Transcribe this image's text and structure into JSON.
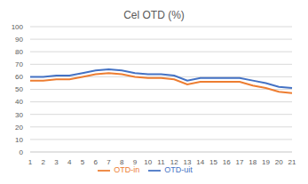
{
  "chart_data": {
    "type": "line",
    "title": "Cel OTD (%)",
    "categories": [
      "1",
      "2",
      "3",
      "4",
      "5",
      "6",
      "7",
      "8",
      "9",
      "10",
      "11",
      "12",
      "13",
      "14",
      "15",
      "16",
      "17",
      "18",
      "19",
      "20",
      "21"
    ],
    "series": [
      {
        "name": "OTD-uit",
        "color": "#4472c4",
        "values": [
          60,
          60,
          61,
          61,
          63,
          65,
          66,
          65,
          63,
          62,
          62,
          61,
          57,
          59,
          59,
          59,
          59,
          57,
          55,
          52,
          51
        ]
      },
      {
        "name": "OTD-in",
        "color": "#ed7d31",
        "values": [
          57,
          57,
          58,
          58,
          60,
          62,
          63,
          62,
          60,
          59,
          59,
          58,
          54,
          56,
          56,
          56,
          56,
          53,
          51,
          48,
          47
        ]
      }
    ],
    "ylim": [
      0,
      100
    ],
    "yticks": [
      0,
      10,
      20,
      30,
      40,
      50,
      60,
      70,
      80,
      90,
      100
    ],
    "grid": true,
    "legend": "bottom"
  }
}
